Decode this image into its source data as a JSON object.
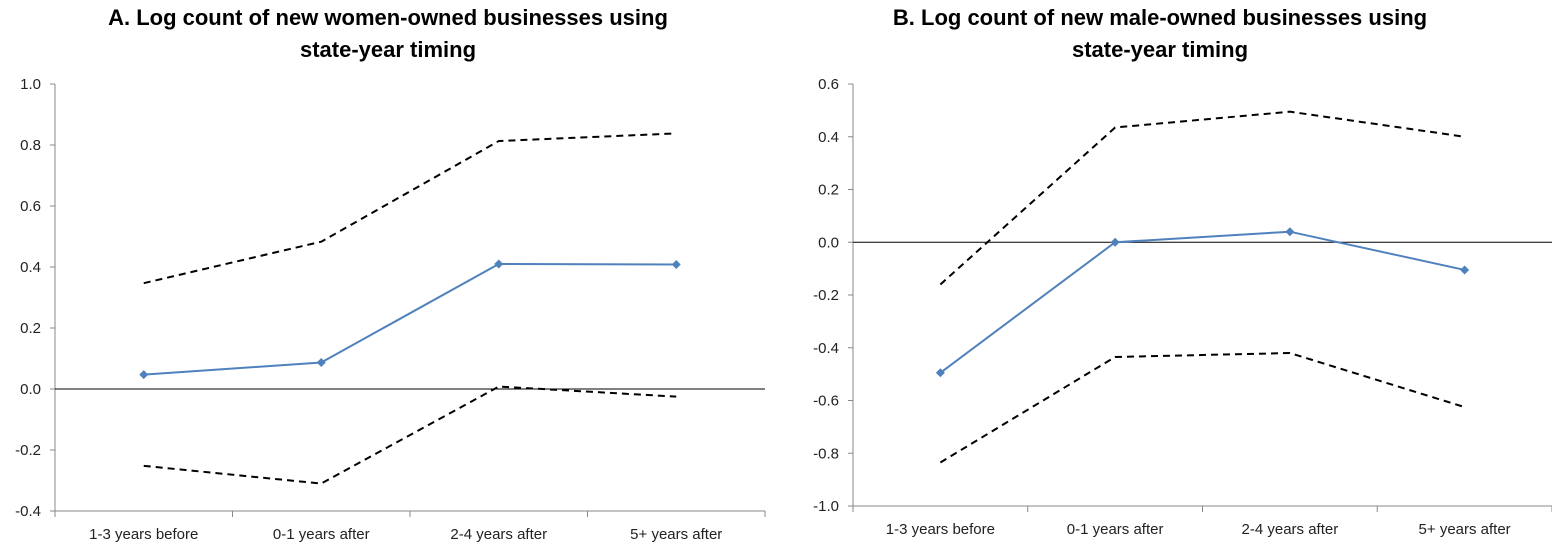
{
  "chart_data": [
    {
      "type": "line",
      "title_lines": [
        "A. Log count of new women-owned businesses using",
        "state-year timing"
      ],
      "categories": [
        "1-3 years before",
        "0-1 years after",
        "2-4 years after",
        "5+ years after"
      ],
      "ylim": [
        -0.4,
        1.0
      ],
      "yticks": [
        "1.0",
        "0.8",
        "0.6",
        "0.4",
        "0.2",
        "0.0",
        "-0.2",
        "-0.4"
      ],
      "series": [
        {
          "style": "solid-marker",
          "color": "#4F81BD",
          "values": [
            0.047,
            0.087,
            0.41,
            0.408
          ]
        },
        {
          "style": "dashed",
          "color": "#000000",
          "values": [
            0.347,
            0.483,
            0.813,
            0.838
          ]
        },
        {
          "style": "dashed",
          "color": "#000000",
          "values": [
            -0.252,
            -0.31,
            0.008,
            -0.025
          ]
        }
      ],
      "zero_line": true,
      "grid": false
    },
    {
      "type": "line",
      "title_lines": [
        "B. Log count of new male-owned businesses using",
        "state-year timing"
      ],
      "categories": [
        "1-3 years before",
        "0-1 years after",
        "2-4 years after",
        "5+ years after"
      ],
      "ylim": [
        -1.0,
        0.6
      ],
      "yticks": [
        "0.6",
        "0.4",
        "0.2",
        "0.0",
        "-0.2",
        "-0.4",
        "-0.6",
        "-0.8",
        "-1.0"
      ],
      "series": [
        {
          "style": "solid-marker",
          "color": "#4F81BD",
          "values": [
            -0.495,
            0.0,
            0.04,
            -0.105
          ]
        },
        {
          "style": "dashed",
          "color": "#000000",
          "values": [
            -0.16,
            0.435,
            0.495,
            0.4
          ]
        },
        {
          "style": "dashed",
          "color": "#000000",
          "values": [
            -0.835,
            -0.435,
            -0.42,
            -0.625
          ]
        }
      ],
      "zero_line": true,
      "grid": false
    }
  ]
}
